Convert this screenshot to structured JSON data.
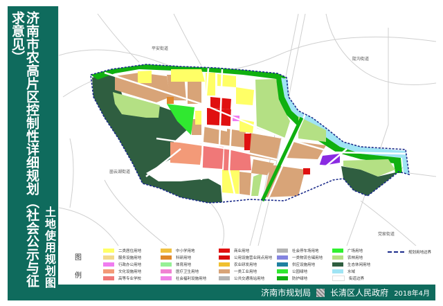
{
  "title": "济南市农高片区控制性详细规划（社会公示与征求意见）",
  "subtitle": "土地使用规划图",
  "map": {
    "labels": [
      "平安街道",
      "陡沟街道",
      "崮云湖街道",
      "党家街道"
    ]
  },
  "legend": {
    "title_1": "图",
    "title_2": "例",
    "items": [
      {
        "label": "二类居住用地",
        "color": "#ffff66"
      },
      {
        "label": "服务设施用地",
        "color": "#f2d98c"
      },
      {
        "label": "行政办公用地",
        "color": "#f07cf0"
      },
      {
        "label": "文化设施用地",
        "color": "#f39a78"
      },
      {
        "label": "高等专业学校",
        "color": "#f07878"
      },
      {
        "label": "中小学用地",
        "color": "#f0c040"
      },
      {
        "label": "科研用地",
        "color": "#e0882c"
      },
      {
        "label": "体育用地",
        "color": "#96f096"
      },
      {
        "label": "医疗卫生用地",
        "color": "#f082d2"
      },
      {
        "label": "社会福利设施用地",
        "color": "#f082e6"
      },
      {
        "label": "商业用地",
        "color": "#e01010"
      },
      {
        "label": "公用设施营业网点用地",
        "color": "#d80c0c"
      },
      {
        "label": "农业研发用地",
        "color": "#f0c030"
      },
      {
        "label": "一类工业用地",
        "color": "#d8a478"
      },
      {
        "label": "公共交通场站用地",
        "color": "#b4b4b4"
      },
      {
        "label": "社会停车场用地",
        "color": "#b4b4b4"
      },
      {
        "label": "一类物流仓储用地",
        "color": "#8484e0"
      },
      {
        "label": "供应设施用地",
        "color": "#1f80a0"
      },
      {
        "label": "公园绿地",
        "color": "#30e830"
      },
      {
        "label": "防护绿地",
        "color": "#10b010"
      },
      {
        "label": "广场用地",
        "color": "#30f030"
      },
      {
        "label": "农林用地",
        "color": "#b4e084"
      },
      {
        "label": "生态休闲用地",
        "color": "#2f5e40"
      },
      {
        "label": "水域",
        "color": "#a0e4f4"
      },
      {
        "label": "街道边界",
        "color": "#ffffff"
      },
      {
        "label": "规划用地边界",
        "color": "#1a2a8a"
      }
    ]
  },
  "footer": {
    "org1": "济南市规划局",
    "org2": "长清区人民政府",
    "date": "2018年4月"
  },
  "colors": {
    "frame": "#0f6b5d",
    "boundary": "#1a2a8a"
  }
}
